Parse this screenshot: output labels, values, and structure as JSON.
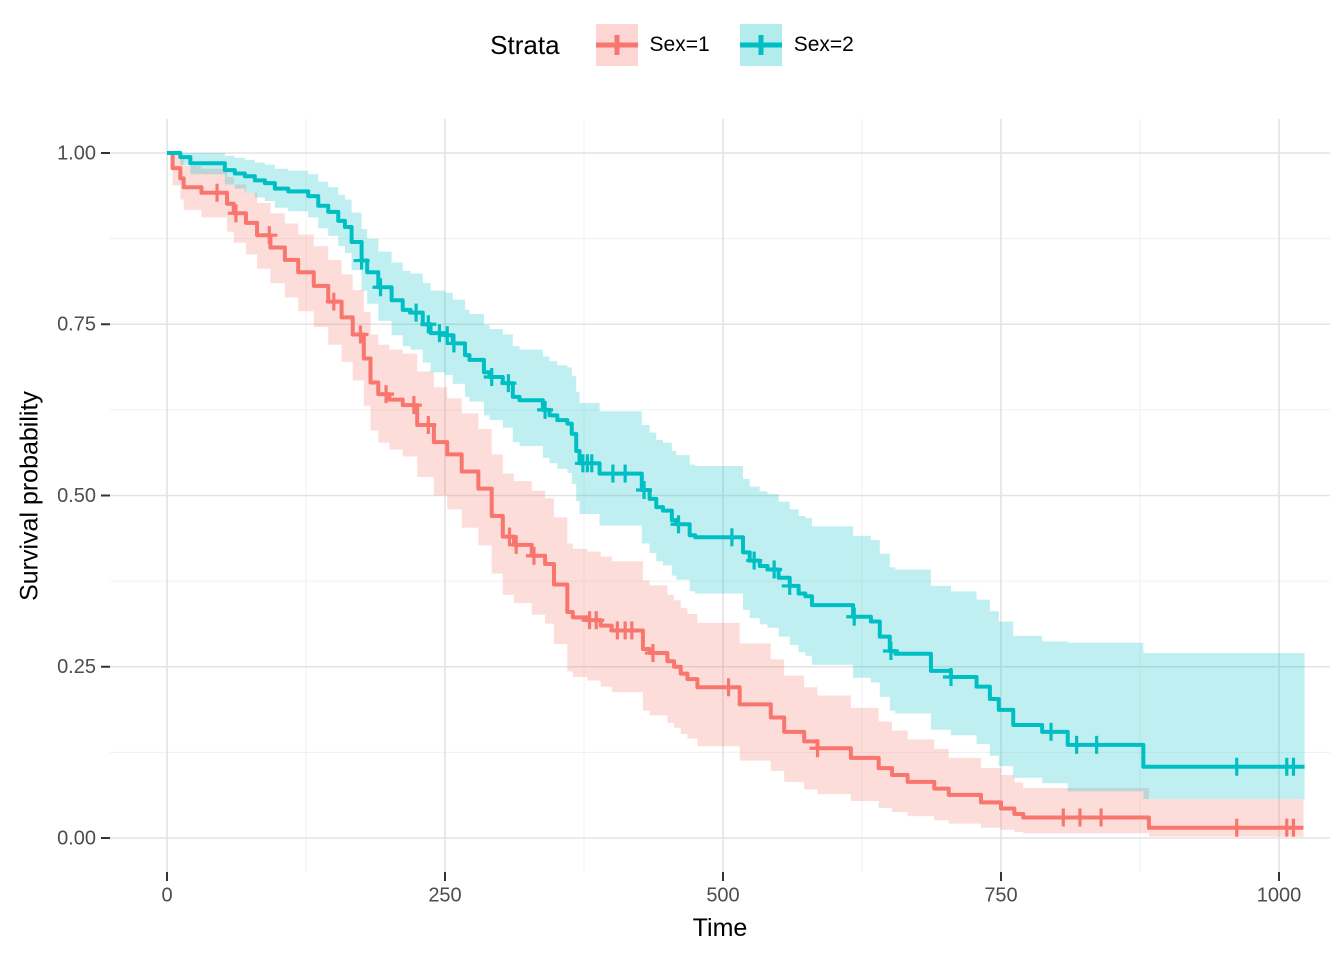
{
  "legend": {
    "title": "Strata",
    "items": [
      {
        "label": "Sex=1",
        "color": "#F8766D",
        "fill": "rgba(248,118,109,0.3)"
      },
      {
        "label": "Sex=2",
        "color": "#00BFC4",
        "fill": "rgba(0,191,196,0.3)"
      }
    ]
  },
  "x_axis": {
    "label": "Time",
    "ticks": [
      0,
      250,
      500,
      750,
      1000
    ],
    "minor_ticks": [
      125,
      375,
      625,
      875
    ],
    "range": [
      0,
      1022
    ]
  },
  "y_axis": {
    "label": "Survival probability",
    "tick_labels": [
      "0.00",
      "0.25",
      "0.50",
      "0.75",
      "1.00"
    ],
    "tick_values": [
      0,
      0.25,
      0.5,
      0.75,
      1
    ],
    "minor_ticks": [
      0.125,
      0.375,
      0.625,
      0.875
    ],
    "range": [
      0,
      1
    ]
  },
  "colors": {
    "grid_major": "#E3E3E3",
    "grid_minor": "#F0F0F0",
    "tick_mark": "#333333",
    "tick_label": "#4D4D4D",
    "axis_title": "#000000",
    "sex1": "#F8766D",
    "sex2": "#00BFC4"
  },
  "chart_data": {
    "type": "line",
    "variant": "kaplan_meier_survival_step",
    "title": "",
    "xlabel": "Time",
    "ylabel": "Survival probability",
    "xlim": [
      0,
      1022
    ],
    "ylim": [
      0,
      1
    ],
    "grid": true,
    "legend_position": "top",
    "legend_title": "Strata",
    "point_format": [
      "time",
      "survival",
      "ci_lower",
      "ci_upper"
    ],
    "series": [
      {
        "name": "Sex=1",
        "color": "#F8766D",
        "ci_fill": "rgba(248,118,109,0.25)",
        "points": [
          [
            0,
            1.0,
            1.0,
            1.0
          ],
          [
            5,
            0.978,
            0.953,
            1.0
          ],
          [
            12,
            0.963,
            0.932,
            0.992
          ],
          [
            15,
            0.95,
            0.917,
            0.981
          ],
          [
            31,
            0.942,
            0.906,
            0.977
          ],
          [
            54,
            0.926,
            0.885,
            0.965
          ],
          [
            60,
            0.912,
            0.869,
            0.954
          ],
          [
            71,
            0.898,
            0.852,
            0.942
          ],
          [
            81,
            0.88,
            0.831,
            0.927
          ],
          [
            93,
            0.862,
            0.81,
            0.912
          ],
          [
            106,
            0.844,
            0.789,
            0.897
          ],
          [
            118,
            0.826,
            0.769,
            0.881
          ],
          [
            132,
            0.806,
            0.746,
            0.864
          ],
          [
            145,
            0.783,
            0.72,
            0.844
          ],
          [
            157,
            0.76,
            0.695,
            0.823
          ],
          [
            167,
            0.735,
            0.668,
            0.8
          ],
          [
            177,
            0.7,
            0.631,
            0.768
          ],
          [
            183,
            0.665,
            0.595,
            0.735
          ],
          [
            190,
            0.648,
            0.577,
            0.72
          ],
          [
            200,
            0.64,
            0.567,
            0.713
          ],
          [
            212,
            0.632,
            0.557,
            0.707
          ],
          [
            225,
            0.603,
            0.527,
            0.681
          ],
          [
            240,
            0.578,
            0.5,
            0.658
          ],
          [
            252,
            0.56,
            0.48,
            0.642
          ],
          [
            265,
            0.535,
            0.453,
            0.62
          ],
          [
            280,
            0.51,
            0.427,
            0.597
          ],
          [
            292,
            0.47,
            0.386,
            0.56
          ],
          [
            302,
            0.44,
            0.355,
            0.532
          ],
          [
            312,
            0.428,
            0.343,
            0.521
          ],
          [
            328,
            0.412,
            0.326,
            0.507
          ],
          [
            340,
            0.4,
            0.313,
            0.496
          ],
          [
            348,
            0.37,
            0.283,
            0.468
          ],
          [
            360,
            0.33,
            0.243,
            0.43
          ],
          [
            365,
            0.322,
            0.235,
            0.422
          ],
          [
            378,
            0.318,
            0.23,
            0.418
          ],
          [
            390,
            0.31,
            0.221,
            0.411
          ],
          [
            400,
            0.303,
            0.213,
            0.404
          ],
          [
            428,
            0.276,
            0.186,
            0.376
          ],
          [
            434,
            0.27,
            0.179,
            0.369
          ],
          [
            450,
            0.258,
            0.168,
            0.355
          ],
          [
            456,
            0.25,
            0.161,
            0.347
          ],
          [
            462,
            0.24,
            0.152,
            0.336
          ],
          [
            468,
            0.232,
            0.145,
            0.327
          ],
          [
            477,
            0.22,
            0.134,
            0.314
          ],
          [
            515,
            0.195,
            0.113,
            0.284
          ],
          [
            543,
            0.176,
            0.098,
            0.261
          ],
          [
            555,
            0.155,
            0.082,
            0.237
          ],
          [
            573,
            0.141,
            0.071,
            0.22
          ],
          [
            585,
            0.131,
            0.064,
            0.208
          ],
          [
            615,
            0.117,
            0.054,
            0.19
          ],
          [
            640,
            0.102,
            0.044,
            0.17
          ],
          [
            652,
            0.092,
            0.038,
            0.157
          ],
          [
            666,
            0.082,
            0.032,
            0.144
          ],
          [
            690,
            0.072,
            0.026,
            0.13
          ],
          [
            703,
            0.063,
            0.021,
            0.117
          ],
          [
            732,
            0.052,
            0.015,
            0.102
          ],
          [
            750,
            0.043,
            0.012,
            0.092
          ],
          [
            762,
            0.035,
            0.009,
            0.081
          ],
          [
            770,
            0.03,
            0.007,
            0.073
          ],
          [
            883,
            0.015,
            0.002,
            0.057
          ],
          [
            1022,
            0.015,
            0.002,
            0.057
          ]
        ],
        "censor_times": [
          45,
          62,
          92,
          150,
          174,
          197,
          222,
          235,
          308,
          314,
          330,
          380,
          386,
          405,
          412,
          418,
          437,
          505,
          585,
          806,
          821,
          840,
          962,
          1007,
          1013
        ]
      },
      {
        "name": "Sex=2",
        "color": "#00BFC4",
        "ci_fill": "rgba(0,191,196,0.25)",
        "points": [
          [
            0,
            1.0,
            1.0,
            1.0
          ],
          [
            12,
            0.994,
            0.982,
            1.0
          ],
          [
            21,
            0.985,
            0.969,
            1.0
          ],
          [
            52,
            0.975,
            0.954,
            0.996
          ],
          [
            61,
            0.97,
            0.948,
            0.993
          ],
          [
            70,
            0.966,
            0.942,
            0.99
          ],
          [
            79,
            0.96,
            0.935,
            0.986
          ],
          [
            88,
            0.956,
            0.93,
            0.983
          ],
          [
            97,
            0.948,
            0.92,
            0.977
          ],
          [
            109,
            0.944,
            0.915,
            0.974
          ],
          [
            127,
            0.937,
            0.906,
            0.969
          ],
          [
            136,
            0.923,
            0.89,
            0.958
          ],
          [
            145,
            0.914,
            0.879,
            0.95
          ],
          [
            154,
            0.901,
            0.864,
            0.939
          ],
          [
            160,
            0.892,
            0.854,
            0.932
          ],
          [
            166,
            0.87,
            0.829,
            0.913
          ],
          [
            175,
            0.843,
            0.799,
            0.889
          ],
          [
            180,
            0.826,
            0.78,
            0.875
          ],
          [
            190,
            0.804,
            0.755,
            0.856
          ],
          [
            202,
            0.785,
            0.734,
            0.84
          ],
          [
            212,
            0.771,
            0.718,
            0.828
          ],
          [
            219,
            0.767,
            0.713,
            0.824
          ],
          [
            230,
            0.75,
            0.694,
            0.81
          ],
          [
            237,
            0.737,
            0.68,
            0.799
          ],
          [
            250,
            0.734,
            0.676,
            0.796
          ],
          [
            257,
            0.722,
            0.663,
            0.786
          ],
          [
            268,
            0.705,
            0.644,
            0.771
          ],
          [
            272,
            0.698,
            0.637,
            0.765
          ],
          [
            285,
            0.68,
            0.617,
            0.749
          ],
          [
            290,
            0.673,
            0.61,
            0.743
          ],
          [
            302,
            0.664,
            0.599,
            0.735
          ],
          [
            311,
            0.644,
            0.578,
            0.718
          ],
          [
            317,
            0.639,
            0.572,
            0.713
          ],
          [
            338,
            0.625,
            0.555,
            0.703
          ],
          [
            344,
            0.617,
            0.547,
            0.696
          ],
          [
            351,
            0.61,
            0.539,
            0.69
          ],
          [
            360,
            0.605,
            0.533,
            0.687
          ],
          [
            364,
            0.59,
            0.517,
            0.674
          ],
          [
            368,
            0.565,
            0.492,
            0.651
          ],
          [
            371,
            0.547,
            0.473,
            0.635
          ],
          [
            389,
            0.532,
            0.456,
            0.623
          ],
          [
            427,
            0.508,
            0.43,
            0.603
          ],
          [
            434,
            0.495,
            0.416,
            0.592
          ],
          [
            440,
            0.483,
            0.404,
            0.581
          ],
          [
            446,
            0.478,
            0.398,
            0.577
          ],
          [
            454,
            0.464,
            0.383,
            0.565
          ],
          [
            458,
            0.458,
            0.377,
            0.559
          ],
          [
            470,
            0.442,
            0.36,
            0.545
          ],
          [
            475,
            0.439,
            0.357,
            0.543
          ],
          [
            518,
            0.417,
            0.333,
            0.524
          ],
          [
            524,
            0.405,
            0.321,
            0.513
          ],
          [
            533,
            0.397,
            0.312,
            0.506
          ],
          [
            540,
            0.392,
            0.307,
            0.502
          ],
          [
            550,
            0.38,
            0.294,
            0.491
          ],
          [
            560,
            0.368,
            0.282,
            0.48
          ],
          [
            568,
            0.357,
            0.271,
            0.47
          ],
          [
            574,
            0.353,
            0.266,
            0.467
          ],
          [
            580,
            0.34,
            0.253,
            0.455
          ],
          [
            617,
            0.323,
            0.234,
            0.441
          ],
          [
            633,
            0.316,
            0.227,
            0.435
          ],
          [
            641,
            0.294,
            0.206,
            0.415
          ],
          [
            650,
            0.273,
            0.186,
            0.395
          ],
          [
            655,
            0.269,
            0.182,
            0.392
          ],
          [
            687,
            0.244,
            0.158,
            0.368
          ],
          [
            705,
            0.235,
            0.15,
            0.36
          ],
          [
            728,
            0.221,
            0.137,
            0.348
          ],
          [
            740,
            0.203,
            0.12,
            0.331
          ],
          [
            748,
            0.187,
            0.105,
            0.316
          ],
          [
            761,
            0.165,
            0.088,
            0.295
          ],
          [
            787,
            0.155,
            0.08,
            0.287
          ],
          [
            810,
            0.136,
            0.068,
            0.285
          ],
          [
            878,
            0.104,
            0.057,
            0.27
          ],
          [
            1023,
            0.104,
            0.057,
            0.27
          ]
        ],
        "censor_times": [
          175,
          192,
          224,
          235,
          245,
          252,
          258,
          292,
          307,
          340,
          374,
          378,
          382,
          401,
          412,
          429,
          460,
          508,
          528,
          546,
          560,
          618,
          651,
          705,
          795,
          818,
          836,
          962,
          1007,
          1013
        ]
      }
    ]
  }
}
